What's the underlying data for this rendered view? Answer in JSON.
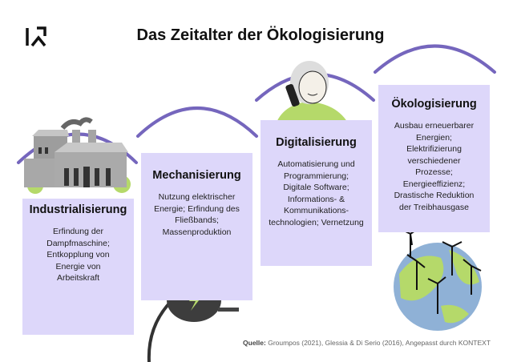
{
  "title": "Das Zeitalter der Ökologisierung",
  "logo": "K",
  "colors": {
    "box": "#ddd7fa",
    "arc": "#7566bd",
    "green": "#b5d96a",
    "earth_blue": "#8fb1d6"
  },
  "stages": [
    {
      "heading": "Industrialisierung",
      "text": "Erfindung der Dampfmaschine; Entkopplung von Energie von Arbeitskraft",
      "icon": "factory-icon"
    },
    {
      "heading": "Mechanisierung",
      "text": "Nutzung elektrischer Energie; Erfindung des Fließbands; Massenproduktion",
      "icon": "plug-icon"
    },
    {
      "heading": "Digitalisierung",
      "text": "Automatisierung und Programmierung; Digitale Software; Informations- & Kommunikations-technologien; Vernetzung",
      "icon": "person-phone-icon"
    },
    {
      "heading": "Ökologisierung",
      "text": "Ausbau erneuerbarer Energien; Elektrifizierung verschiedener Prozesse; Energieeffizienz; Drastische Reduktion der Treibhausgase",
      "icon": "earth-windturbines-icon"
    }
  ],
  "source": {
    "label": "Quelle:",
    "text": " Groumpos (2021), Glessia & Di Serio (2016), Angepasst durch KONTEXT"
  }
}
